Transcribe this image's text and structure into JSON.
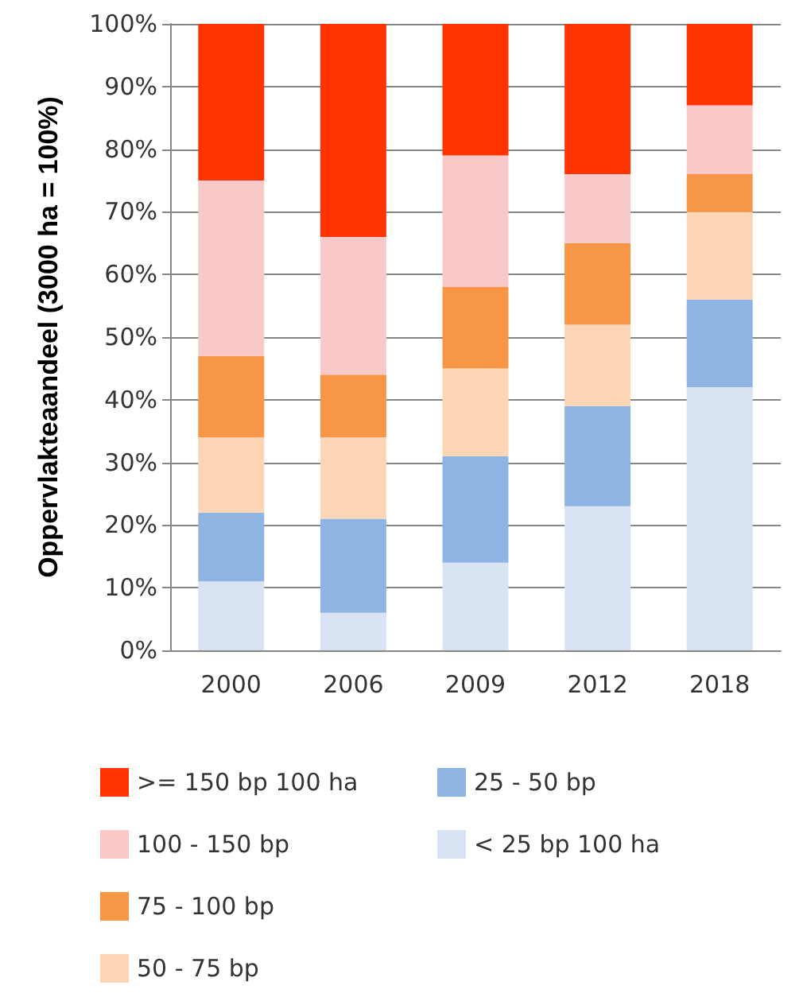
{
  "chart_data": {
    "type": "bar",
    "stacked": true,
    "ylabel": "Oppervlakteaandeel (3000 ha = 100%)",
    "categories": [
      "2000",
      "2006",
      "2009",
      "2012",
      "2018"
    ],
    "series": [
      {
        "name": "< 25 bp 100 ha",
        "color": "#dae3f3",
        "values": [
          11,
          6,
          14,
          23,
          42
        ]
      },
      {
        "name": "25 - 50 bp",
        "color": "#8eb4e3",
        "values": [
          11,
          15,
          17,
          16,
          14
        ]
      },
      {
        "name": "50 - 75 bp",
        "color": "#fcd5b5",
        "values": [
          12,
          13,
          14,
          13,
          14
        ]
      },
      {
        "name": "75 - 100 bp",
        "color": "#f79646",
        "values": [
          13,
          10,
          13,
          13,
          6
        ]
      },
      {
        "name": "100 - 150 bp",
        "color": "#f9c8c8",
        "values": [
          28,
          22,
          21,
          11,
          11
        ]
      },
      {
        "name": ">= 150 bp 100 ha",
        "color": "#ff3300",
        "values": [
          25,
          34,
          21,
          24,
          13
        ]
      }
    ],
    "ylim": [
      0,
      100
    ],
    "yticks": [
      {
        "value": 0,
        "label": "0%"
      },
      {
        "value": 10,
        "label": "10%"
      },
      {
        "value": 20,
        "label": "20%"
      },
      {
        "value": 30,
        "label": "30%"
      },
      {
        "value": 40,
        "label": "40%"
      },
      {
        "value": 50,
        "label": "50%"
      },
      {
        "value": 60,
        "label": "60%"
      },
      {
        "value": 70,
        "label": "70%"
      },
      {
        "value": 80,
        "label": "80%"
      },
      {
        "value": 90,
        "label": "90%"
      },
      {
        "value": 100,
        "label": "100%"
      }
    ],
    "grid": "y",
    "legend": "bottom"
  }
}
